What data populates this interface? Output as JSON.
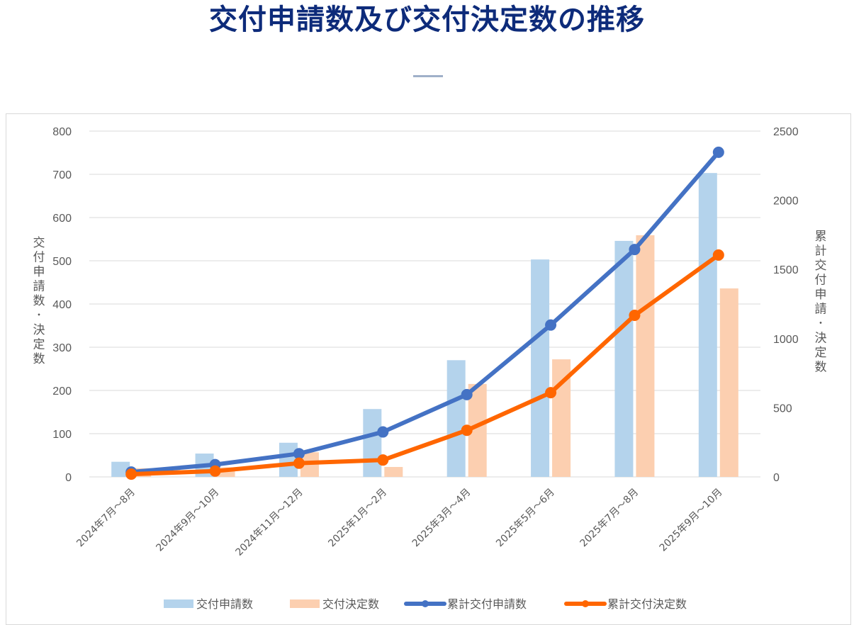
{
  "page": {
    "title": "交付申請数及び交付決定数の推移"
  },
  "colors": {
    "title": "#0d2b7a",
    "applied_bar": "#b4d3ec",
    "decided_bar": "#fccfb0",
    "cum_applied_line": "#4472c4",
    "cum_decided_line": "#ff6600",
    "grid": "#d9d9d9",
    "text": "#595959"
  },
  "chart_data": {
    "type": "bar+line",
    "title": "交付申請数及び交付決定数の推移",
    "xlabel": "",
    "ylabel": "交付申請数・決定数",
    "y2label": "累計交付申請・決定数",
    "ylim": [
      0,
      800
    ],
    "y2lim": [
      0,
      2500
    ],
    "yticks": [
      0,
      100,
      200,
      300,
      400,
      500,
      600,
      700,
      800
    ],
    "y2ticks": [
      0,
      500,
      1000,
      1500,
      2000,
      2500
    ],
    "grid": true,
    "legend_position": "bottom",
    "categories": [
      "2024年7月～8月",
      "2024年9月～10月",
      "2024年11月～12月",
      "2025年1月～2月",
      "2025年3月～4月",
      "2025年5月～6月",
      "2025年7月～8月",
      "2025年9月～10月"
    ],
    "series": [
      {
        "name": "交付申請数",
        "type": "bar",
        "axis": "left",
        "values": [
          35,
          54,
          79,
          157,
          270,
          503,
          546,
          703
        ]
      },
      {
        "name": "交付決定数",
        "type": "bar",
        "axis": "left",
        "values": [
          20,
          22,
          57,
          23,
          215,
          272,
          559,
          436
        ]
      },
      {
        "name": "累計交付申請数",
        "type": "line",
        "axis": "right",
        "values": [
          35,
          89,
          168,
          325,
          595,
          1098,
          1644,
          2347
        ]
      },
      {
        "name": "累計交付決定数",
        "type": "line",
        "axis": "right",
        "values": [
          20,
          42,
          99,
          122,
          337,
          609,
          1168,
          1604
        ]
      }
    ]
  }
}
